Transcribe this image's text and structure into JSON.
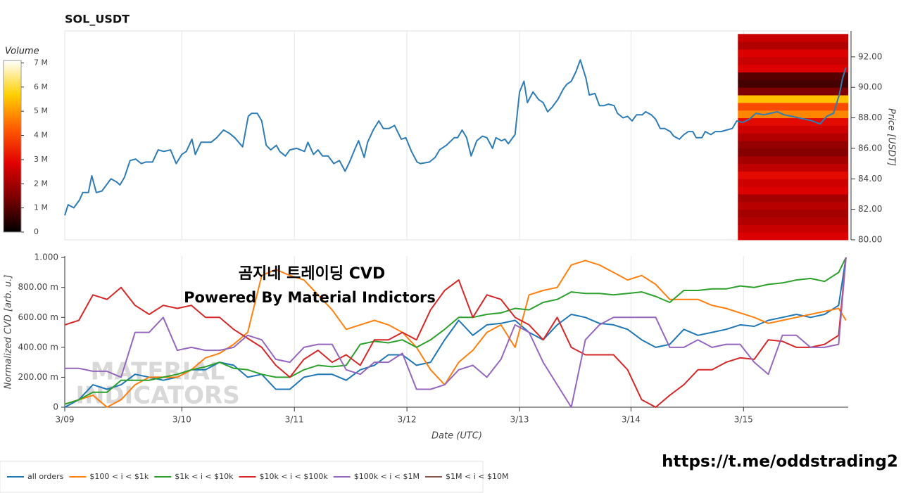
{
  "chart_data": [
    {
      "type": "line",
      "title": "SOL_USDT",
      "y_label": "Price [USDT]",
      "x": [
        0,
        0.03,
        0.08,
        0.13,
        0.16,
        0.21,
        0.24,
        0.28,
        0.33,
        0.38,
        0.41,
        0.46,
        0.49,
        0.53,
        0.58,
        0.63,
        0.68,
        0.72,
        0.78,
        0.83,
        0.88,
        0.94,
        0.99,
        1.04,
        1.08,
        1.13,
        1.16,
        1.21,
        1.25,
        1.3,
        1.35,
        1.41,
        1.46,
        1.51,
        1.58,
        1.63,
        1.66,
        1.71,
        1.75,
        1.79,
        1.83,
        1.88,
        1.91,
        1.96,
        2,
        2.06,
        2.13,
        2.16,
        2.21,
        2.25,
        2.29,
        2.34,
        2.39,
        2.44,
        2.49,
        2.53,
        2.58,
        2.61,
        2.66,
        2.69,
        2.74,
        2.79,
        2.83,
        2.88,
        2.93,
        2.99,
        3.03,
        3.08,
        3.13,
        3.16,
        3.24,
        3.29,
        3.33,
        3.39,
        3.46,
        3.49,
        3.53,
        3.57,
        3.61,
        3.66,
        3.71,
        3.75,
        3.8,
        3.83,
        3.88,
        3.91,
        3.94,
        4,
        4.04,
        4.08,
        4.11,
        4.16,
        4.21,
        4.25,
        4.29,
        4.33,
        4.38,
        4.43,
        4.46,
        4.5,
        4.54,
        4.58,
        4.63,
        4.66,
        4.71,
        4.75,
        4.79,
        4.83,
        4.88,
        4.91,
        4.96,
        5,
        5.04,
        5.08,
        5.13,
        5.16,
        5.21,
        5.25,
        5.29,
        5.33,
        5.38,
        5.41,
        5.46,
        5.5,
        5.54,
        5.58,
        5.61,
        5.66,
        5.69,
        5.74,
        5.78,
        5.83,
        5.88,
        5.93,
        5.97,
        6.02,
        6.08,
        6.14,
        6.21,
        6.27,
        6.33,
        6.39,
        6.46,
        6.52,
        6.58,
        6.64,
        6.71,
        6.77,
        6.83,
        6.88,
        6.91,
        6.94
      ],
      "series": [
        {
          "color": "#2e7cb5",
          "values": [
            81.6,
            82.3,
            82.1,
            82.6,
            83.1,
            83.1,
            84.2,
            83.1,
            83.2,
            83.7,
            84.0,
            83.8,
            83.6,
            84.1,
            85.2,
            85.3,
            85.0,
            85.1,
            85.1,
            85.9,
            85.8,
            85.9,
            85.0,
            85.6,
            85.8,
            86.6,
            85.6,
            86.4,
            86.4,
            86.4,
            86.7,
            87.2,
            87.0,
            86.7,
            86.1,
            88.1,
            88.3,
            88.3,
            87.8,
            86.2,
            85.9,
            86.2,
            85.8,
            85.5,
            85.9,
            86.0,
            85.8,
            86.4,
            85.6,
            85.9,
            85.5,
            85.5,
            85.0,
            85.2,
            84.5,
            85.1,
            86.0,
            86.5,
            85.4,
            86.4,
            87.2,
            87.8,
            87.3,
            87.3,
            87.5,
            86.6,
            86.7,
            85.8,
            85.1,
            85.0,
            85.1,
            85.4,
            85.9,
            86.2,
            86.7,
            86.7,
            87.2,
            86.7,
            85.5,
            86.5,
            86.8,
            86.7,
            86.0,
            86.7,
            86.5,
            86.6,
            86.3,
            86.9,
            89.7,
            90.4,
            89.0,
            89.7,
            89.2,
            89.0,
            88.4,
            88.7,
            89.2,
            89.9,
            90.2,
            90.4,
            91.0,
            91.8,
            90.6,
            89.5,
            89.6,
            88.8,
            88.8,
            88.9,
            88.8,
            88.3,
            88.0,
            88.1,
            87.8,
            88.2,
            88.2,
            88.4,
            88.2,
            87.9,
            87.3,
            87.3,
            87.1,
            86.8,
            86.6,
            86.9,
            87.1,
            87.1,
            86.7,
            86.7,
            87.1,
            86.9,
            87.1,
            87.1,
            87.2,
            87.3,
            87.8,
            87.7,
            87.9,
            88.3,
            88.2,
            88.3,
            88.4,
            88.2,
            88.1,
            88.0,
            87.9,
            87.8,
            87.6,
            88.1,
            88.3,
            89.5,
            90.6,
            91.3
          ]
        }
      ],
      "xlim": [
        0,
        6.96
      ],
      "ylim": [
        80,
        93.7
      ],
      "yticks": [
        {
          "value": 80,
          "label": "80.00"
        },
        {
          "value": 82,
          "label": "82.00"
        },
        {
          "value": 84,
          "label": "84.00"
        },
        {
          "value": 86,
          "label": "86.00"
        },
        {
          "value": 88,
          "label": "88.00"
        },
        {
          "value": 90,
          "label": "90.00"
        },
        {
          "value": 92,
          "label": "92.00"
        }
      ],
      "heatmap": {
        "x_range": [
          5.98,
          6.96
        ],
        "price_bins": [
          80,
          80.5,
          81,
          81.5,
          82,
          82.5,
          83,
          83.5,
          84,
          84.5,
          85,
          85.5,
          86,
          86.5,
          87,
          87.5,
          88,
          88.5,
          89,
          89.5,
          90,
          90.5,
          91,
          91.5,
          92,
          92.5,
          93,
          93.5
        ],
        "values": [
          2.8,
          2.5,
          2.2,
          2.0,
          2.3,
          2.0,
          2.8,
          2.6,
          3.0,
          2.4,
          2.0,
          1.6,
          1.8,
          2.2,
          2.6,
          3.0,
          4.8,
          4.0,
          5.5,
          1.5,
          0.8,
          1.0,
          2.8,
          2.5,
          2.8,
          2.2,
          2.5
        ]
      },
      "colorbar": {
        "title": "Volume",
        "zlim": [
          0,
          7.1
        ],
        "colorscale": [
          "#000000",
          "#7a0000",
          "#e00000",
          "#ff5a00",
          "#ffd000",
          "#ffffff"
        ],
        "ticks": [
          0,
          {
            "value": 1,
            "label": "1 M"
          },
          {
            "value": 2,
            "label": "2 M"
          },
          {
            "value": 3,
            "label": "3 M"
          },
          {
            "value": 4,
            "label": "4 M"
          },
          {
            "value": 5,
            "label": "5 M"
          },
          {
            "value": 6,
            "label": "6 M"
          },
          {
            "value": 7,
            "label": "7 M"
          }
        ]
      }
    },
    {
      "type": "line",
      "y_label": "Normalized CVD [arb. u.]",
      "x_label": "Date (UTC)",
      "annotations": [
        "곰지네 트레이딩 CVD",
        "Powered By Material Indictors"
      ],
      "x": [
        0,
        0.125,
        0.25,
        0.375,
        0.5,
        0.625,
        0.75,
        0.875,
        1,
        1.125,
        1.25,
        1.375,
        1.5,
        1.625,
        1.75,
        1.875,
        2,
        2.125,
        2.25,
        2.375,
        2.5,
        2.625,
        2.75,
        2.875,
        3,
        3.125,
        3.25,
        3.375,
        3.5,
        3.625,
        3.75,
        3.875,
        4,
        4.125,
        4.25,
        4.375,
        4.5,
        4.625,
        4.75,
        4.875,
        5,
        5.125,
        5.25,
        5.375,
        5.5,
        5.625,
        5.75,
        5.875,
        6,
        6.125,
        6.25,
        6.375,
        6.5,
        6.625,
        6.75,
        6.875,
        6.94
      ],
      "series": [
        {
          "name": "all orders",
          "color": "#1f77b4",
          "values": [
            0,
            0.05,
            0.15,
            0.12,
            0.15,
            0.22,
            0.2,
            0.18,
            0.2,
            0.25,
            0.25,
            0.3,
            0.28,
            0.2,
            0.22,
            0.12,
            0.12,
            0.2,
            0.22,
            0.22,
            0.18,
            0.25,
            0.28,
            0.35,
            0.35,
            0.28,
            0.3,
            0.45,
            0.58,
            0.48,
            0.55,
            0.56,
            0.58,
            0.5,
            0.45,
            0.55,
            0.62,
            0.6,
            0.56,
            0.55,
            0.52,
            0.45,
            0.4,
            0.42,
            0.52,
            0.48,
            0.5,
            0.52,
            0.55,
            0.54,
            0.58,
            0.6,
            0.62,
            0.6,
            0.62,
            0.68,
            1.0
          ]
        },
        {
          "name": "$100 < i < $1k",
          "color": "#ff7f0e",
          "values": [
            0.02,
            0.05,
            0.08,
            0,
            0.05,
            0.15,
            0.2,
            0.2,
            0.2,
            0.25,
            0.33,
            0.36,
            0.42,
            0.5,
            0.88,
            0.92,
            0.88,
            0.85,
            0.75,
            0.65,
            0.52,
            0.55,
            0.58,
            0.55,
            0.5,
            0.4,
            0.25,
            0.15,
            0.3,
            0.38,
            0.5,
            0.55,
            0.4,
            0.75,
            0.78,
            0.8,
            0.95,
            0.98,
            0.95,
            0.9,
            0.85,
            0.88,
            0.82,
            0.72,
            0.72,
            0.72,
            0.68,
            0.66,
            0.63,
            0.6,
            0.56,
            0.58,
            0.6,
            0.62,
            0.64,
            0.66,
            0.58
          ]
        },
        {
          "name": "$1k < i < $10k",
          "color": "#2ca02c",
          "values": [
            0.02,
            0.05,
            0.1,
            0.1,
            0.18,
            0.18,
            0.18,
            0.2,
            0.22,
            0.25,
            0.27,
            0.3,
            0.26,
            0.25,
            0.22,
            0.2,
            0.2,
            0.25,
            0.28,
            0.27,
            0.28,
            0.42,
            0.44,
            0.43,
            0.45,
            0.4,
            0.45,
            0.52,
            0.6,
            0.6,
            0.62,
            0.63,
            0.66,
            0.65,
            0.7,
            0.72,
            0.77,
            0.76,
            0.76,
            0.75,
            0.76,
            0.77,
            0.74,
            0.7,
            0.78,
            0.78,
            0.79,
            0.79,
            0.81,
            0.8,
            0.82,
            0.83,
            0.85,
            0.86,
            0.84,
            0.9,
            1.0
          ]
        },
        {
          "name": "$10k < i < $100k",
          "color": "#d62728",
          "values": [
            0.55,
            0.58,
            0.75,
            0.72,
            0.8,
            0.68,
            0.62,
            0.68,
            0.66,
            0.68,
            0.6,
            0.6,
            0.52,
            0.46,
            0.4,
            0.28,
            0.2,
            0.32,
            0.38,
            0.3,
            0.35,
            0.28,
            0.45,
            0.45,
            0.5,
            0.45,
            0.65,
            0.78,
            0.85,
            0.6,
            0.75,
            0.72,
            0.6,
            0.55,
            0.45,
            0.6,
            0.4,
            0.35,
            0.35,
            0.35,
            0.25,
            0.05,
            0,
            0.08,
            0.15,
            0.25,
            0.25,
            0.3,
            0.33,
            0.32,
            0.45,
            0.44,
            0.4,
            0.4,
            0.42,
            0.48,
            1.0
          ]
        },
        {
          "name": "$100k < i < $1M",
          "color": "#9467bd",
          "values": [
            0.26,
            0.26,
            0.24,
            0.24,
            0.2,
            0.5,
            0.5,
            0.6,
            0.38,
            0.4,
            0.38,
            0.38,
            0.4,
            0.48,
            0.45,
            0.32,
            0.3,
            0.4,
            0.42,
            0.42,
            0.25,
            0.22,
            0.3,
            0.3,
            0.36,
            0.12,
            0.12,
            0.15,
            0.25,
            0.28,
            0.2,
            0.32,
            0.55,
            0.5,
            0.3,
            0.15,
            0,
            0.45,
            0.55,
            0.6,
            0.6,
            0.6,
            0.6,
            0.4,
            0.4,
            0.45,
            0.4,
            0.42,
            0.42,
            0.3,
            0.22,
            0.48,
            0.48,
            0.4,
            0.4,
            0.42,
            1.0
          ]
        },
        {
          "name": "$1M < i < $10M",
          "color": "#8c564b"
        }
      ],
      "xlim": [
        0,
        6.96
      ],
      "ylim": [
        0,
        1.01
      ],
      "xticks": [
        {
          "value": 0,
          "label": "3/09"
        },
        {
          "value": 1.04,
          "label": "3/10"
        },
        {
          "value": 2.04,
          "label": "3/11"
        },
        {
          "value": 3.04,
          "label": "3/12"
        },
        {
          "value": 4.04,
          "label": "3/13"
        },
        {
          "value": 5.03,
          "label": "3/14"
        },
        {
          "value": 6.03,
          "label": "3/15"
        }
      ],
      "yticks": [
        0,
        {
          "value": 0.2,
          "label": "200.00 m"
        },
        {
          "value": 0.4,
          "label": "400.00 m"
        },
        {
          "value": 0.6,
          "label": "600.00 m"
        },
        {
          "value": 0.8,
          "label": "800.00 m"
        },
        {
          "value": 1,
          "label": "1.000"
        }
      ],
      "grid": true
    }
  ],
  "watermark": [
    "MATERIAL",
    "INDICATORS"
  ],
  "link": "https://t.me/oddstrading2"
}
